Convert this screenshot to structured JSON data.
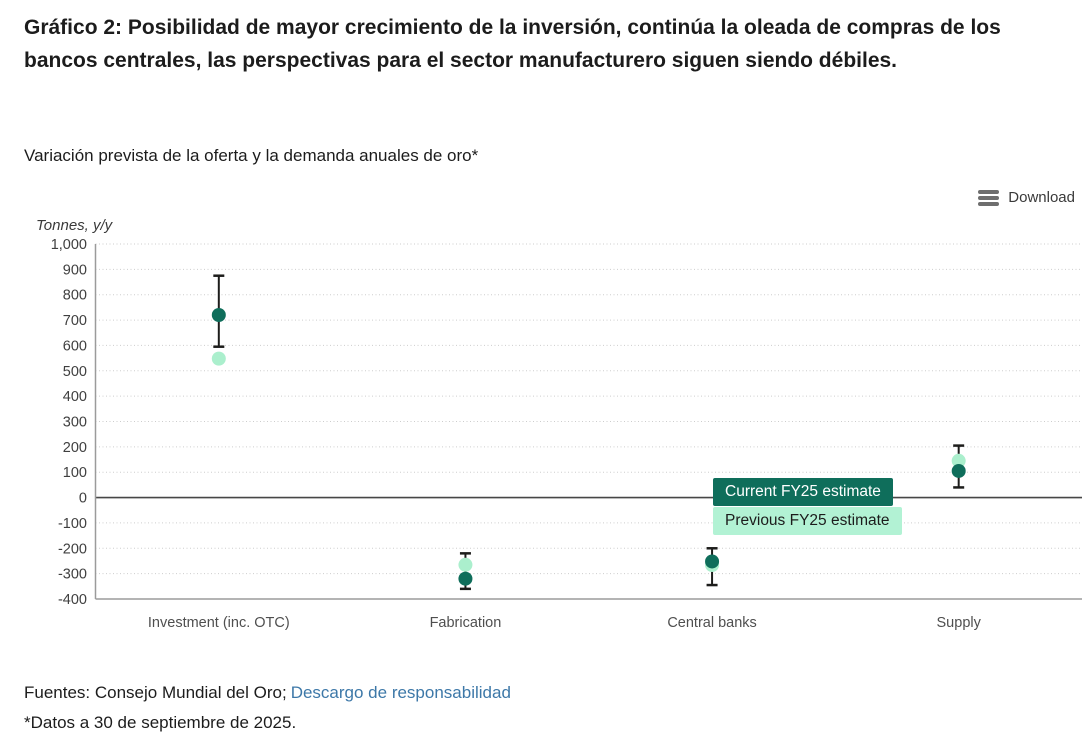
{
  "header": {
    "title": "Gráfico 2: Posibilidad de mayor crecimiento de la inversión, continúa la oleada de compras de los bancos centrales, las perspectivas para el sector manufacturero siguen siendo débiles.",
    "subtitle": "Variación prevista de la oferta y la demanda anuales de oro*"
  },
  "toolbar": {
    "download_label": "Download"
  },
  "chart_data": {
    "type": "scatter",
    "title": "Variación prevista de la oferta y la demanda anuales de oro*",
    "ylabel": "Tonnes, y/y",
    "ylim": [
      -400,
      1000
    ],
    "ytick_step": 100,
    "grid": "horizontal dotted gridlines, solid dark zero line",
    "legend_position": "inside top-right",
    "categories": [
      "Investment (inc. OTC)",
      "Fabrication",
      "Central banks",
      "Supply"
    ],
    "series": [
      {
        "name": "Current FY25 estimate",
        "marker": "circle-with-error-bars",
        "color": "#0f6e5b",
        "values": [
          720,
          -320,
          -252,
          105
        ],
        "error_high": [
          875,
          -220,
          -200,
          205
        ],
        "error_low": [
          595,
          -360,
          -345,
          40
        ]
      },
      {
        "name": "Previous FY25 estimate",
        "marker": "circle",
        "color": "#abefcd",
        "values": [
          548,
          -265,
          -266,
          145
        ]
      }
    ],
    "colors": {
      "gridline": "#cdcdcd",
      "zero_line": "#474747",
      "axis_line": "#9b9b9b",
      "error_bar": "#1d1d1b",
      "tick_text": "#3f3f3f",
      "category_text": "#4f4f4f"
    }
  },
  "legend": {
    "items": [
      {
        "label": "Current FY25 estimate",
        "bg": "#0f6e5b",
        "text_color": "#ffffff"
      },
      {
        "label": "Previous FY25 estimate",
        "bg": "#b2f2d4",
        "text_color": "#1c1c1c"
      }
    ]
  },
  "footer": {
    "sources_prefix": "Fuentes: Consejo Mundial del Oro;",
    "disclaimer_link": "Descargo de responsabilidad",
    "footnote": "*Datos a 30 de septiembre de 2025.",
    "link_color": "#3d78a8"
  }
}
